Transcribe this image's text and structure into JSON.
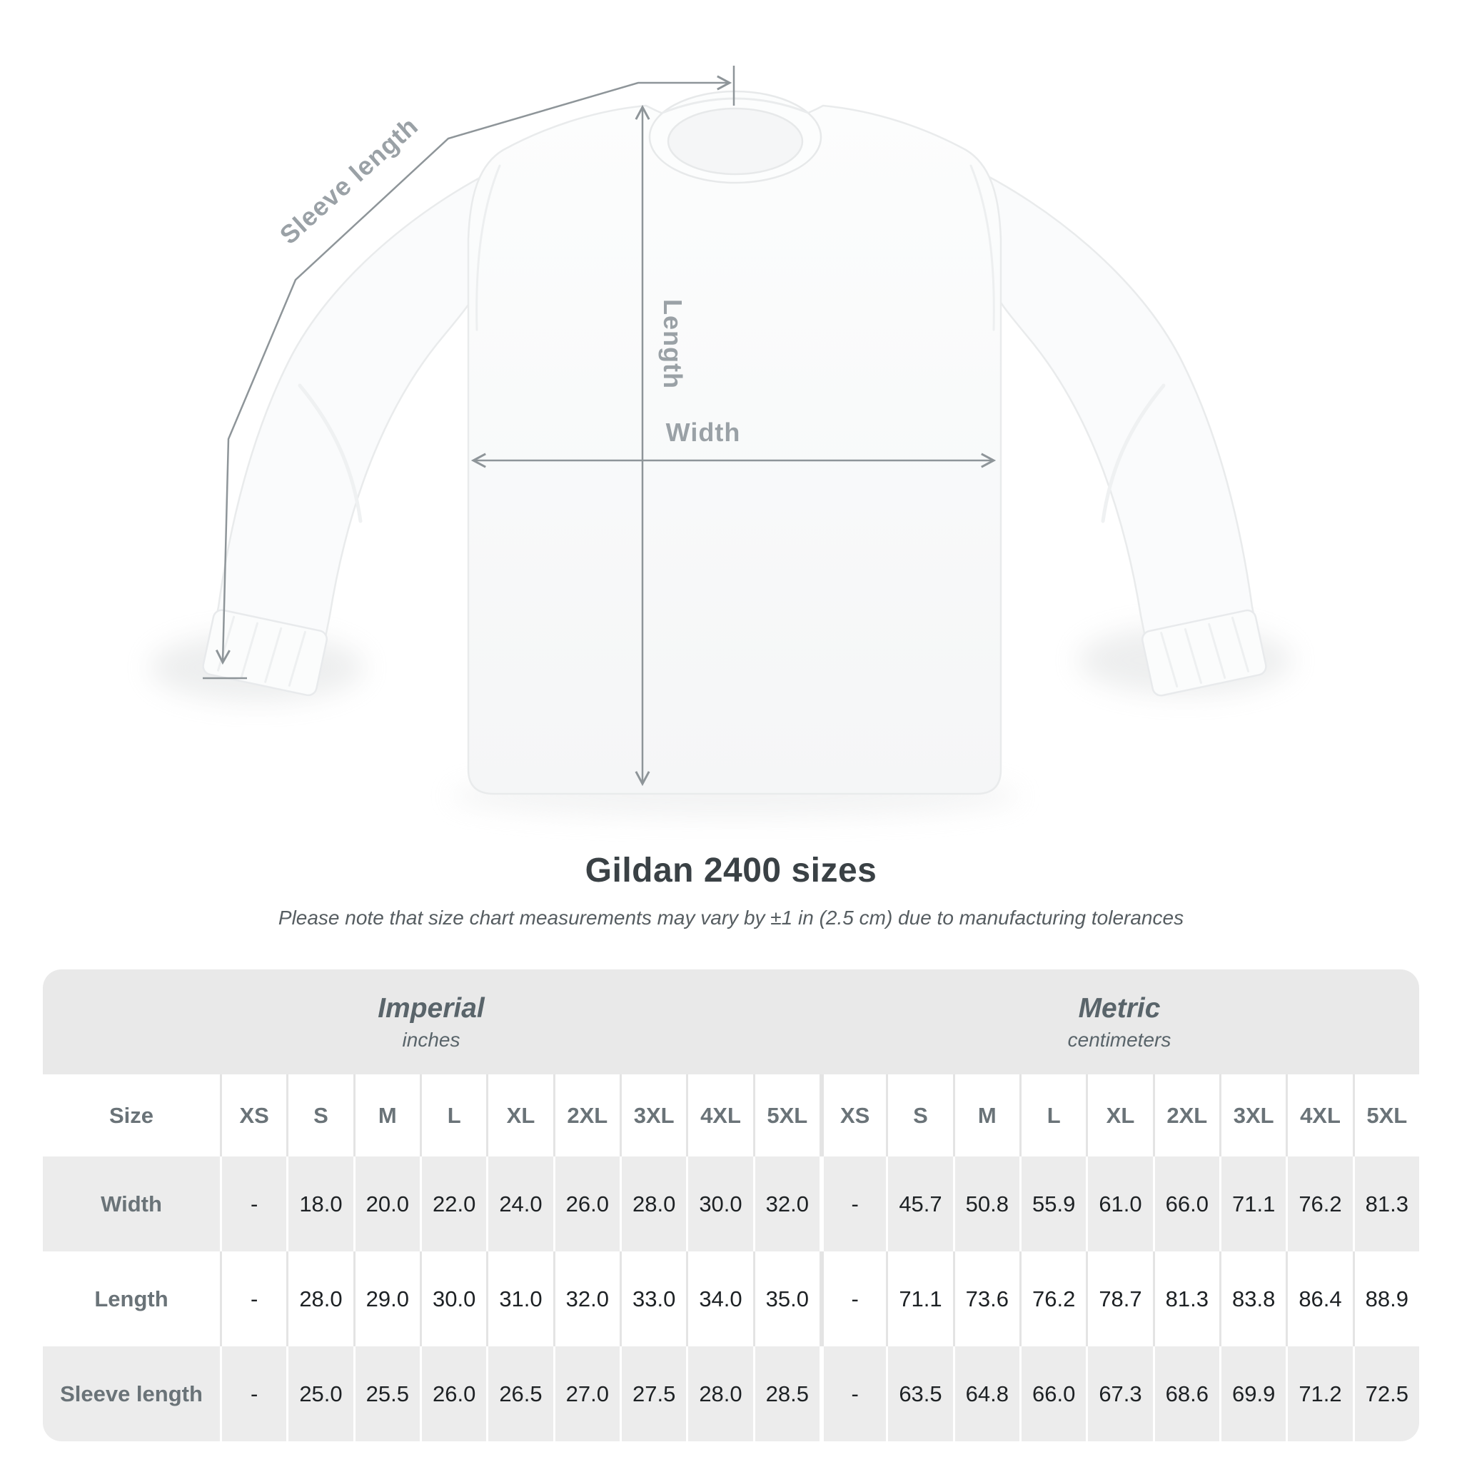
{
  "heading": {
    "title": "Gildan 2400 sizes",
    "subtitle": "Please note that size chart measurements may vary by ±1 in (2.5 cm) due to manufacturing tolerances"
  },
  "diagram": {
    "sleeve_length_label": "Sleeve length",
    "length_label": "Length",
    "width_label": "Width"
  },
  "table": {
    "groups": [
      {
        "name": "Imperial",
        "unit": "inches"
      },
      {
        "name": "Metric",
        "unit": "centimeters"
      }
    ],
    "size_column_header": "Size",
    "sizes": [
      "XS",
      "S",
      "M",
      "L",
      "XL",
      "2XL",
      "3XL",
      "4XL",
      "5XL"
    ],
    "rows": [
      {
        "label": "Width",
        "imperial": [
          "-",
          "18.0",
          "20.0",
          "22.0",
          "24.0",
          "26.0",
          "28.0",
          "30.0",
          "32.0"
        ],
        "metric": [
          "-",
          "45.7",
          "50.8",
          "55.9",
          "61.0",
          "66.0",
          "71.1",
          "76.2",
          "81.3"
        ]
      },
      {
        "label": "Length",
        "imperial": [
          "-",
          "28.0",
          "29.0",
          "30.0",
          "31.0",
          "32.0",
          "33.0",
          "34.0",
          "35.0"
        ],
        "metric": [
          "-",
          "71.1",
          "73.6",
          "76.2",
          "78.7",
          "81.3",
          "83.8",
          "86.4",
          "88.9"
        ]
      },
      {
        "label": "Sleeve length",
        "imperial": [
          "-",
          "25.0",
          "25.5",
          "26.0",
          "26.5",
          "27.0",
          "27.5",
          "28.0",
          "28.5"
        ],
        "metric": [
          "-",
          "63.5",
          "64.8",
          "66.0",
          "67.3",
          "68.6",
          "69.9",
          "71.2",
          "72.5"
        ]
      }
    ]
  },
  "colors": {
    "measure_line": "#8e9599",
    "measure_label": "#9aa1a6",
    "band_bg": "#e9e9e9",
    "row_alt_bg": "#ececec",
    "header_text": "#6a7378",
    "value_text": "#1d2124",
    "title_text": "#3a4145"
  }
}
